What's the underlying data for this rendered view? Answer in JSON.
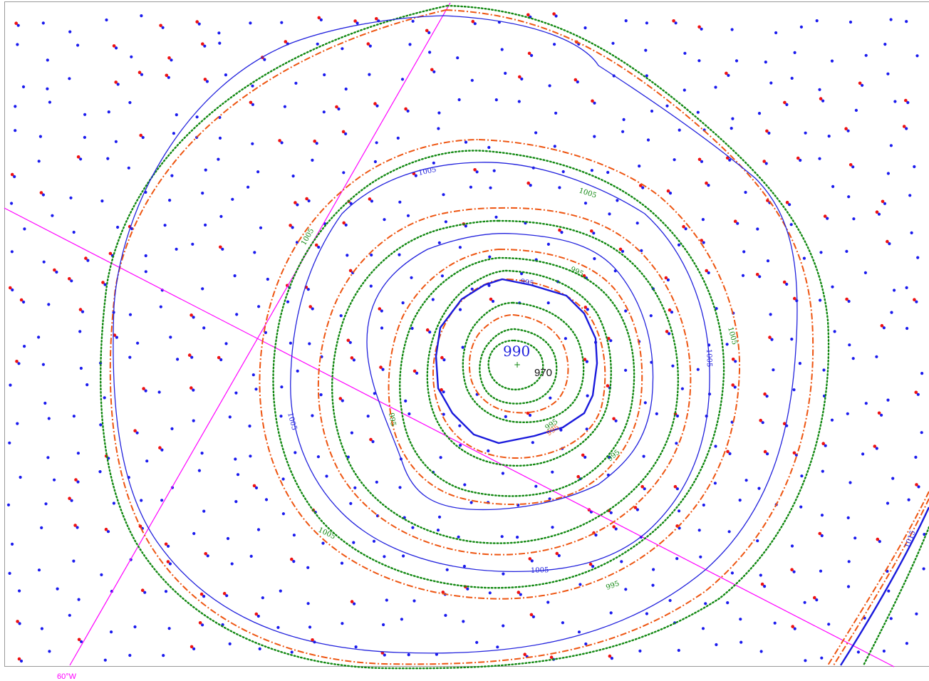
{
  "map": {
    "colors": {
      "blue": "#2222dd",
      "green": "#118811",
      "orange": "#ee5511",
      "grid": "#ff00ff",
      "obs_blue": "#1a1aee",
      "obs_red": "#ee1111"
    },
    "center_label": "990",
    "low_pressure_label": "970",
    "longitude_label": "60°W",
    "contour_labels": {
      "l1005_tl": "1005",
      "l1005_top": "1005",
      "l1005_green_top": "1005",
      "l995_top": "995",
      "l995_green_top": "995",
      "l1005_right": "1005",
      "l1005_green_right": "1005",
      "l1005_left": "1005",
      "l995_left": "995",
      "l995_bottom": "995",
      "l995_bottom2": "995",
      "l995_br": "995",
      "l1005_bottom": "1005",
      "l1005_green_bottom": "1005",
      "l995_green_bottom": "995",
      "l1015_corner": "1015"
    },
    "legend": []
  }
}
